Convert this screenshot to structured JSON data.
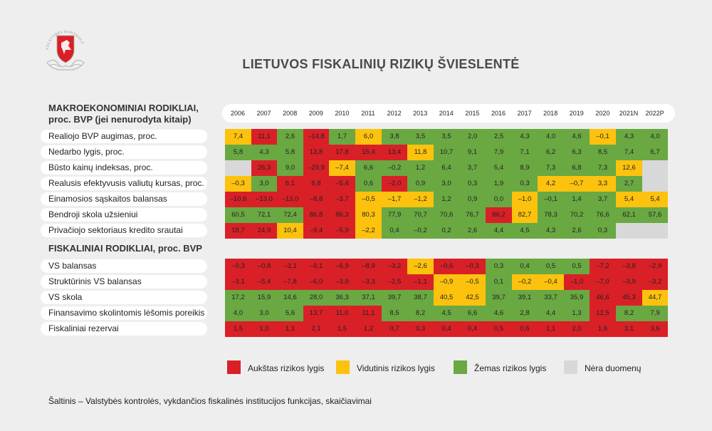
{
  "title": "LIETUVOS FISKALINIŲ RIZIKŲ ŠVIESLENTĖ",
  "logo_text": "VALSTYBĖS KONTROLĖ",
  "section_macro_line1": "MAKROEKONOMINIAI RODIKLIAI,",
  "section_macro_line2": "proc. BVP (jei nenurodyta kitaip)",
  "section_fiscal": "FISKALINIAI RODIKLIAI, proc. BVP",
  "source": "Šaltinis – Valstybės kontrolės, vykdančios fiskalinės institucijos funkcijas, skaičiavimai",
  "colors": {
    "high": "#d92027",
    "medium": "#fdc20e",
    "low": "#6aa842",
    "none": "#d8d8d8"
  },
  "legend": [
    {
      "label": "Aukštas rizikos lygis",
      "color": "#d92027"
    },
    {
      "label": "Vidutinis rizikos lygis",
      "color": "#fdc20e"
    },
    {
      "label": "Žemas rizikos lygis",
      "color": "#6aa842"
    },
    {
      "label": "Nėra duomenų",
      "color": "#d8d8d8"
    }
  ],
  "chart_data": {
    "type": "table",
    "title": "LIETUVOS FISKALINIŲ RIZIKŲ ŠVIESLENTĖ",
    "columns": [
      "2006",
      "2007",
      "2008",
      "2009",
      "2010",
      "2011",
      "2012",
      "2013",
      "2014",
      "2015",
      "2016",
      "2017",
      "2018",
      "2019",
      "2020",
      "2021N",
      "2022P"
    ],
    "risk_codes": {
      "r": "Aukštas rizikos lygis",
      "y": "Vidutinis rizikos lygis",
      "g": "Žemas rizikos lygis",
      "n": "Nėra duomenų"
    },
    "rows": [
      {
        "group": "macro",
        "label": "Realiojo BVP augimas, proc.",
        "values": [
          "7,4",
          "11,1",
          "2,6",
          "–14,8",
          "1,7",
          "6,0",
          "3,8",
          "3,5",
          "3,5",
          "2,0",
          "2,5",
          "4,3",
          "4,0",
          "4,6",
          "–0,1",
          "4,3",
          "4,0"
        ],
        "risk": [
          "y",
          "r",
          "g",
          "r",
          "g",
          "y",
          "g",
          "g",
          "g",
          "g",
          "g",
          "g",
          "g",
          "g",
          "y",
          "g",
          "g"
        ]
      },
      {
        "group": "macro",
        "label": "Nedarbo lygis, proc.",
        "values": [
          "5,8",
          "4,3",
          "5,8",
          "13,8",
          "17,8",
          "15,4",
          "13,4",
          "11,8",
          "10,7",
          "9,1",
          "7,9",
          "7,1",
          "6,2",
          "6,3",
          "8,5",
          "7,4",
          "6,7"
        ],
        "risk": [
          "g",
          "g",
          "g",
          "r",
          "r",
          "r",
          "r",
          "y",
          "g",
          "g",
          "g",
          "g",
          "g",
          "g",
          "g",
          "g",
          "g"
        ]
      },
      {
        "group": "macro",
        "label": "Būsto kainų indeksas, proc.",
        "values": [
          "",
          "26,3",
          "9,0",
          "–29,9",
          "–7,4",
          "6,6",
          "–0,2",
          "1,2",
          "6,4",
          "3,7",
          "5,4",
          "8,9",
          "7,3",
          "6,8",
          "7,3",
          "12,6",
          ""
        ],
        "risk": [
          "n",
          "r",
          "g",
          "r",
          "y",
          "g",
          "g",
          "g",
          "g",
          "g",
          "g",
          "g",
          "g",
          "g",
          "g",
          "y",
          "n"
        ]
      },
      {
        "group": "macro",
        "label": "Realusis efektyvusis valiutų kursas, proc.",
        "values": [
          "–0,3",
          "3,0",
          "6,1",
          "6,8",
          "–5,4",
          "0,6",
          "–2,0",
          "0,9",
          "3,0",
          "0,3",
          "1,9",
          "0,3",
          "4,2",
          "–0,7",
          "3,3",
          "2,7",
          ""
        ],
        "risk": [
          "y",
          "g",
          "r",
          "r",
          "r",
          "g",
          "r",
          "g",
          "g",
          "g",
          "g",
          "g",
          "y",
          "y",
          "y",
          "g",
          "n"
        ]
      },
      {
        "group": "macro",
        "label": "Einamosios sąskaitos balansas",
        "values": [
          "–10,6",
          "–13,0",
          "–13,0",
          "–8,8",
          "–3,7",
          "–0,5",
          "–1,7",
          "–1,2",
          "1,2",
          "0,9",
          "0,0",
          "–1,0",
          "–0,1",
          "1,4",
          "3,7",
          "5,4",
          "5,4"
        ],
        "risk": [
          "r",
          "r",
          "r",
          "r",
          "r",
          "y",
          "y",
          "y",
          "g",
          "g",
          "g",
          "y",
          "g",
          "g",
          "g",
          "y",
          "y"
        ]
      },
      {
        "group": "macro",
        "label": "Bendroji skola užsieniui",
        "values": [
          "60,5",
          "72,1",
          "72,4",
          "86,8",
          "86,3",
          "80,3",
          "77,9",
          "70,7",
          "70,6",
          "76,7",
          "86,2",
          "82,7",
          "78,3",
          "70,2",
          "76,6",
          "62,1",
          "57,6"
        ],
        "risk": [
          "g",
          "g",
          "g",
          "r",
          "r",
          "y",
          "g",
          "g",
          "g",
          "g",
          "r",
          "y",
          "g",
          "g",
          "g",
          "g",
          "g"
        ]
      },
      {
        "group": "macro",
        "label": "Privačiojo sektoriaus kredito srautai",
        "values": [
          "18,7",
          "24,9",
          "10,4",
          "–9,4",
          "–5,9",
          "–2,2",
          "0,4",
          "–0,2",
          "0,2",
          "2,6",
          "4,4",
          "4,5",
          "4,3",
          "2,6",
          "0,3",
          "",
          ""
        ],
        "risk": [
          "r",
          "r",
          "y",
          "r",
          "r",
          "y",
          "g",
          "g",
          "g",
          "g",
          "g",
          "g",
          "g",
          "g",
          "g",
          "n",
          "n"
        ]
      },
      {
        "group": "fiscal",
        "label": "VS balansas",
        "values": [
          "–0,3",
          "–0,8",
          "–3,1",
          "–9,1",
          "–6,9",
          "–8,9",
          "–3,2",
          "–2,6",
          "–0,6",
          "–0,3",
          "0,3",
          "0,4",
          "0,5",
          "0,5",
          "–7,2",
          "–3,8",
          "–2,9"
        ],
        "risk": [
          "r",
          "r",
          "r",
          "r",
          "r",
          "r",
          "r",
          "y",
          "r",
          "r",
          "g",
          "g",
          "g",
          "g",
          "r",
          "r",
          "r"
        ]
      },
      {
        "group": "fiscal",
        "label": "Struktūrinis VS balansas",
        "values": [
          "–3,1",
          "–5,4",
          "–7,8",
          "–6,0",
          "–3,9",
          "–3,3",
          "–2,5",
          "–1,1",
          "–0,9",
          "–0,5",
          "0,1",
          "–0,2",
          "–0,4",
          "–1,0",
          "–7,0",
          "–3,9",
          "–3,2"
        ],
        "risk": [
          "r",
          "r",
          "r",
          "r",
          "r",
          "r",
          "r",
          "r",
          "y",
          "y",
          "g",
          "y",
          "y",
          "r",
          "r",
          "r",
          "r"
        ]
      },
      {
        "group": "fiscal",
        "label": "VS skola",
        "values": [
          "17,2",
          "15,9",
          "14,6",
          "28,0",
          "36,3",
          "37,1",
          "39,7",
          "38,7",
          "40,5",
          "42,5",
          "39,7",
          "39,1",
          "33,7",
          "35,9",
          "46,6",
          "45,3",
          "44,7"
        ],
        "risk": [
          "g",
          "g",
          "g",
          "g",
          "g",
          "g",
          "g",
          "g",
          "y",
          "y",
          "g",
          "g",
          "g",
          "g",
          "r",
          "r",
          "y"
        ]
      },
      {
        "group": "fiscal",
        "label": "Finansavimo skolintomis lėšomis poreikis",
        "values": [
          "4,0",
          "3,0",
          "5,6",
          "13,7",
          "11,0",
          "11,1",
          "8,5",
          "8,2",
          "4,5",
          "6,6",
          "4,6",
          "2,8",
          "4,4",
          "1,3",
          "12,5",
          "8,2",
          "7,9"
        ],
        "risk": [
          "g",
          "g",
          "g",
          "r",
          "r",
          "r",
          "g",
          "g",
          "g",
          "g",
          "g",
          "g",
          "g",
          "g",
          "r",
          "g",
          "g"
        ]
      },
      {
        "group": "fiscal",
        "label": "Fiskaliniai rezervai",
        "values": [
          "1,5",
          "1,0",
          "1,1",
          "2,1",
          "1,5",
          "1,2",
          "0,7",
          "0,3",
          "0,4",
          "0,4",
          "0,5",
          "0,6",
          "1,1",
          "2,0",
          "1,6",
          "3,1",
          "3,6"
        ],
        "risk": [
          "r",
          "r",
          "r",
          "r",
          "r",
          "r",
          "r",
          "r",
          "r",
          "r",
          "r",
          "r",
          "r",
          "r",
          "r",
          "r",
          "r"
        ]
      }
    ]
  }
}
